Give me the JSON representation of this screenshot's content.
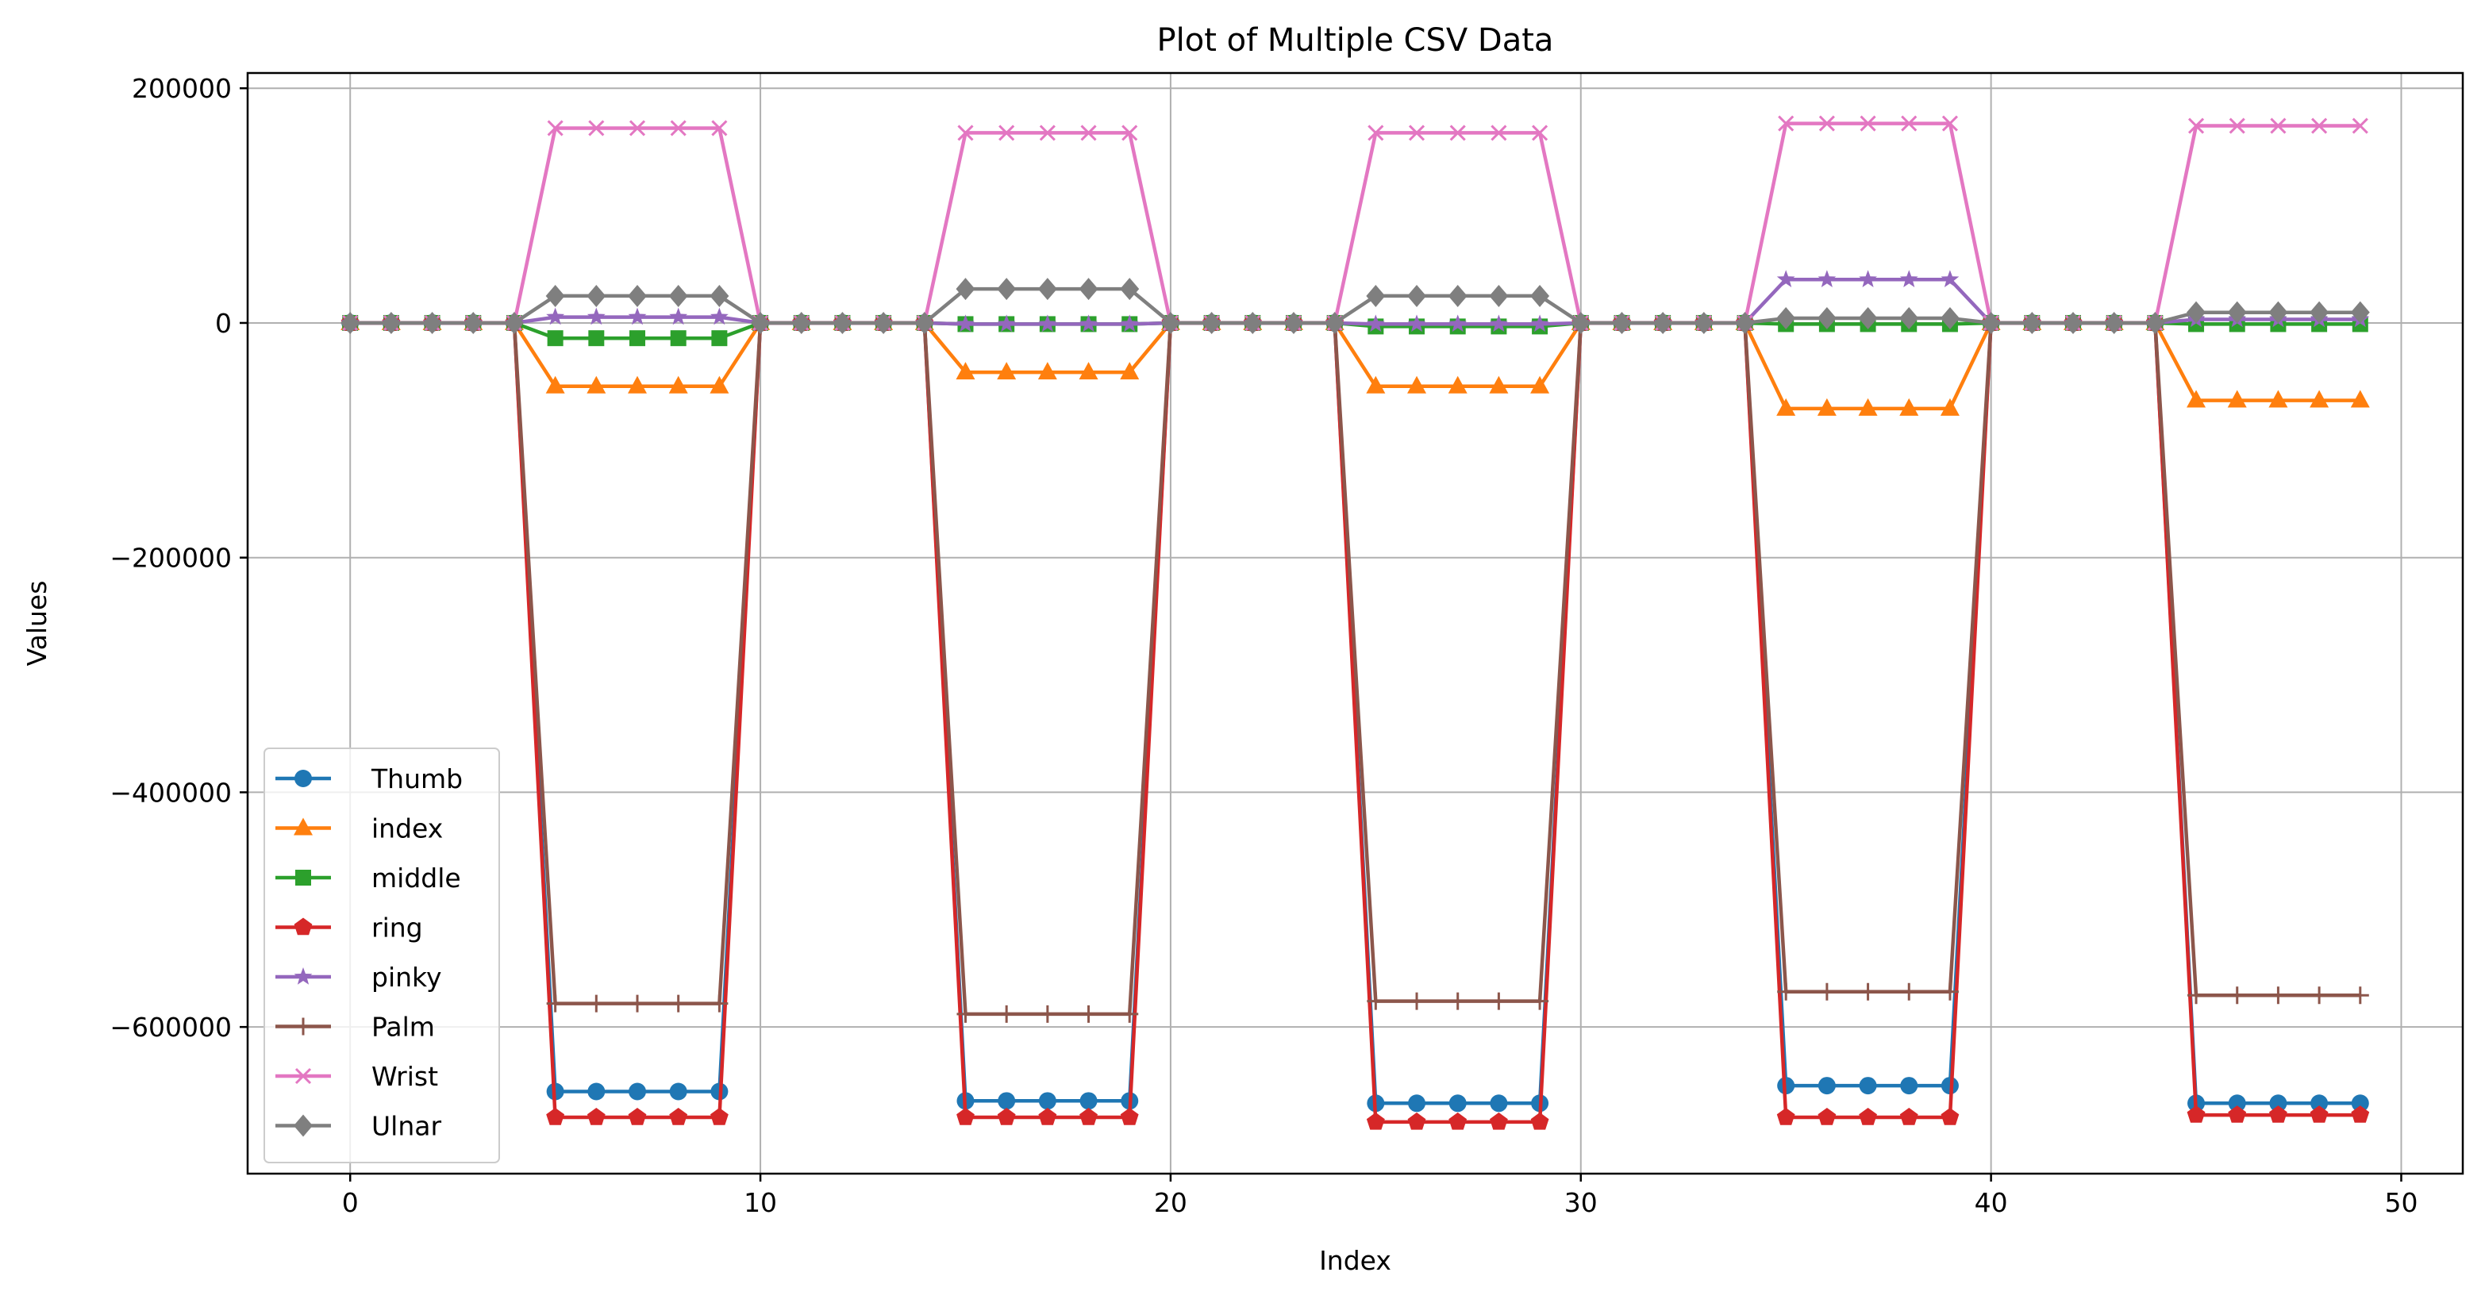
{
  "chart_data": {
    "type": "line",
    "title": "Plot of Multiple CSV Data",
    "xlabel": "Index",
    "ylabel": "Values",
    "xlim": [
      -2.5,
      51.5
    ],
    "ylim": [
      -725000,
      213000
    ],
    "xticks": [
      0,
      10,
      20,
      30,
      40,
      50
    ],
    "xtick_labels": [
      "0",
      "10",
      "20",
      "30",
      "40",
      "50"
    ],
    "yticks": [
      200000,
      0,
      -200000,
      -400000,
      -600000
    ],
    "ytick_labels": [
      "200000",
      "0",
      "−200000",
      "−400000",
      "−600000"
    ],
    "grid": true,
    "legend_position": "lower-left",
    "x": [
      0,
      1,
      2,
      3,
      4,
      5,
      6,
      7,
      8,
      9,
      10,
      11,
      12,
      13,
      14,
      15,
      16,
      17,
      18,
      19,
      20,
      21,
      22,
      23,
      24,
      25,
      26,
      27,
      28,
      29,
      30,
      31,
      32,
      33,
      34,
      35,
      36,
      37,
      38,
      39,
      40,
      41,
      42,
      43,
      44,
      45,
      46,
      47,
      48,
      49
    ],
    "series": [
      {
        "name": "Thumb",
        "color": "#1f77b4",
        "marker": "circle",
        "values": [
          0,
          0,
          0,
          0,
          0,
          -655000,
          -655000,
          -655000,
          -655000,
          -655000,
          0,
          0,
          0,
          0,
          0,
          -663000,
          -663000,
          -663000,
          -663000,
          -663000,
          0,
          0,
          0,
          0,
          0,
          -665000,
          -665000,
          -665000,
          -665000,
          -665000,
          0,
          0,
          0,
          0,
          0,
          -650000,
          -650000,
          -650000,
          -650000,
          -650000,
          0,
          0,
          0,
          0,
          0,
          -665000,
          -665000,
          -665000,
          -665000,
          -665000
        ]
      },
      {
        "name": "index",
        "color": "#ff7f0e",
        "marker": "triangle",
        "values": [
          0,
          0,
          0,
          0,
          0,
          -54000,
          -54000,
          -54000,
          -54000,
          -54000,
          0,
          0,
          0,
          0,
          0,
          -42000,
          -42000,
          -42000,
          -42000,
          -42000,
          0,
          0,
          0,
          0,
          0,
          -54000,
          -54000,
          -54000,
          -54000,
          -54000,
          0,
          0,
          0,
          0,
          0,
          -73000,
          -73000,
          -73000,
          -73000,
          -73000,
          0,
          0,
          0,
          0,
          0,
          -66000,
          -66000,
          -66000,
          -66000,
          -66000
        ]
      },
      {
        "name": "middle",
        "color": "#2ca02c",
        "marker": "square",
        "values": [
          0,
          0,
          0,
          0,
          0,
          -13000,
          -13000,
          -13000,
          -13000,
          -13000,
          0,
          0,
          0,
          0,
          0,
          -1000,
          -1000,
          -1000,
          -1000,
          -1000,
          0,
          0,
          0,
          0,
          0,
          -3000,
          -3000,
          -3000,
          -3000,
          -3000,
          0,
          0,
          0,
          0,
          0,
          -1000,
          -1000,
          -1000,
          -1000,
          -1000,
          0,
          0,
          0,
          0,
          0,
          -1000,
          -1000,
          -1000,
          -1000,
          -1000
        ]
      },
      {
        "name": "ring",
        "color": "#d62728",
        "marker": "pentagon",
        "values": [
          0,
          0,
          0,
          0,
          0,
          -677000,
          -677000,
          -677000,
          -677000,
          -677000,
          0,
          0,
          0,
          0,
          0,
          -677000,
          -677000,
          -677000,
          -677000,
          -677000,
          0,
          0,
          0,
          0,
          0,
          -681000,
          -681000,
          -681000,
          -681000,
          -681000,
          0,
          0,
          0,
          0,
          0,
          -677000,
          -677000,
          -677000,
          -677000,
          -677000,
          0,
          0,
          0,
          0,
          0,
          -675000,
          -675000,
          -675000,
          -675000,
          -675000
        ]
      },
      {
        "name": "pinky",
        "color": "#9467bd",
        "marker": "star",
        "values": [
          0,
          0,
          0,
          0,
          0,
          5000,
          5000,
          5000,
          5000,
          5000,
          0,
          0,
          0,
          0,
          0,
          -1000,
          -1000,
          -1000,
          -1000,
          -1000,
          0,
          0,
          0,
          0,
          0,
          -1000,
          -1000,
          -1000,
          -1000,
          -1000,
          0,
          0,
          0,
          0,
          0,
          37000,
          37000,
          37000,
          37000,
          37000,
          0,
          0,
          0,
          0,
          0,
          3000,
          3000,
          3000,
          3000,
          3000
        ]
      },
      {
        "name": "Palm",
        "color": "#8c564b",
        "marker": "plus",
        "values": [
          0,
          0,
          0,
          0,
          0,
          -580000,
          -580000,
          -580000,
          -580000,
          -580000,
          0,
          0,
          0,
          0,
          0,
          -589000,
          -589000,
          -589000,
          -589000,
          -589000,
          0,
          0,
          0,
          0,
          0,
          -578000,
          -578000,
          -578000,
          -578000,
          -578000,
          0,
          0,
          0,
          0,
          0,
          -570000,
          -570000,
          -570000,
          -570000,
          -570000,
          0,
          0,
          0,
          0,
          0,
          -573000,
          -573000,
          -573000,
          -573000,
          -573000
        ]
      },
      {
        "name": "Wrist",
        "color": "#e377c2",
        "marker": "x",
        "values": [
          0,
          0,
          0,
          0,
          0,
          166000,
          166000,
          166000,
          166000,
          166000,
          0,
          0,
          0,
          0,
          0,
          162000,
          162000,
          162000,
          162000,
          162000,
          0,
          0,
          0,
          0,
          0,
          162000,
          162000,
          162000,
          162000,
          162000,
          0,
          0,
          0,
          0,
          0,
          170000,
          170000,
          170000,
          170000,
          170000,
          0,
          0,
          0,
          0,
          0,
          168000,
          168000,
          168000,
          168000,
          168000
        ]
      },
      {
        "name": "Ulnar",
        "color": "#7f7f7f",
        "marker": "diamond",
        "values": [
          0,
          0,
          0,
          0,
          0,
          23000,
          23000,
          23000,
          23000,
          23000,
          0,
          0,
          0,
          0,
          0,
          29000,
          29000,
          29000,
          29000,
          29000,
          0,
          0,
          0,
          0,
          0,
          23000,
          23000,
          23000,
          23000,
          23000,
          0,
          0,
          0,
          0,
          0,
          4000,
          4000,
          4000,
          4000,
          4000,
          0,
          0,
          0,
          0,
          0,
          9000,
          9000,
          9000,
          9000,
          9000
        ]
      }
    ]
  }
}
